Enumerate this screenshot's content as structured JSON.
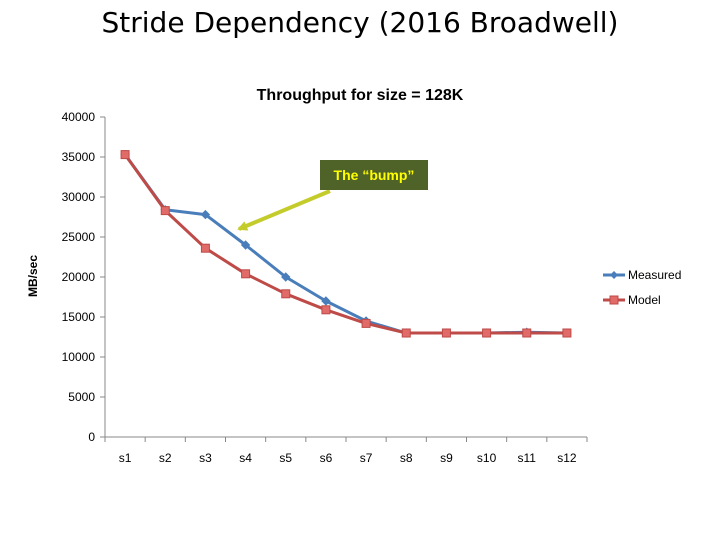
{
  "slide": {
    "title": "Stride Dependency (2016 Broadwell)"
  },
  "colors": {
    "measured": "#4a7ebb",
    "model": "#be4b48",
    "callout_bg": "#4f6228",
    "callout_text": "#ffff00",
    "arrow": "#c4cc2c",
    "axis": "#888888"
  },
  "chart_data": {
    "type": "line",
    "title": "Throughput for size = 128K",
    "xlabel": "",
    "ylabel": "MB/sec",
    "categories": [
      "s1",
      "s2",
      "s3",
      "s4",
      "s5",
      "s6",
      "s7",
      "s8",
      "s9",
      "s10",
      "s11",
      "s12"
    ],
    "ylim": [
      0,
      40000
    ],
    "yticks": [
      0,
      5000,
      10000,
      15000,
      20000,
      25000,
      30000,
      35000,
      40000
    ],
    "grid": false,
    "legend_position": "right",
    "series": [
      {
        "name": "Measured",
        "marker": "diamond",
        "values": [
          35300,
          28400,
          27800,
          24000,
          20000,
          17000,
          14500,
          13000,
          13000,
          13000,
          13100,
          13000
        ]
      },
      {
        "name": "Model",
        "marker": "square",
        "values": [
          35300,
          28300,
          23600,
          20400,
          17900,
          15900,
          14200,
          13000,
          13000,
          13000,
          13000,
          13000
        ]
      }
    ],
    "annotation": {
      "text": "The “bump”",
      "points_to_category": "s4",
      "points_to_series": "Measured"
    }
  }
}
